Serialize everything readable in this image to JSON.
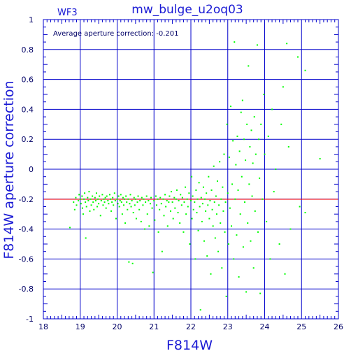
{
  "chart_data": {
    "type": "scatter",
    "title": "mw_bulge_u2oq03",
    "tag": "WF3",
    "annotation": "Average aperture correction: -0.201",
    "xlabel": "F814W",
    "ylabel": "F814W aperture correction",
    "xlim": [
      18,
      26
    ],
    "ylim": [
      -1,
      1
    ],
    "xticks": [
      "18",
      "19",
      "20",
      "21",
      "22",
      "23",
      "24",
      "25",
      "26"
    ],
    "yticks": [
      "-1",
      "-0.8",
      "-0.6",
      "-0.4",
      "-0.2",
      "0",
      "0.2",
      "0.4",
      "0.6",
      "0.8",
      "1"
    ],
    "grid": true,
    "reference_line": {
      "y": -0.201,
      "color": "#ff0000"
    },
    "colors": {
      "frame": "#0000cc",
      "text": "#1a1ad4",
      "points": "#00ff00",
      "reference": "#ff0000"
    },
    "points": [
      [
        18.72,
        -0.39
      ],
      [
        18.82,
        -0.22
      ],
      [
        18.85,
        -0.27
      ],
      [
        18.88,
        -0.19
      ],
      [
        18.9,
        -0.24
      ],
      [
        18.95,
        -0.21
      ],
      [
        18.97,
        -0.17
      ],
      [
        19.0,
        -0.2
      ],
      [
        19.02,
        -0.23
      ],
      [
        19.05,
        -0.18
      ],
      [
        19.06,
        -0.26
      ],
      [
        19.08,
        -0.3
      ],
      [
        19.1,
        -0.2
      ],
      [
        19.12,
        -0.16
      ],
      [
        19.14,
        -0.22
      ],
      [
        19.15,
        -0.46
      ],
      [
        19.17,
        -0.25
      ],
      [
        19.2,
        -0.19
      ],
      [
        19.22,
        -0.21
      ],
      [
        19.24,
        -0.15
      ],
      [
        19.26,
        -0.28
      ],
      [
        19.28,
        -0.2
      ],
      [
        19.3,
        -0.24
      ],
      [
        19.33,
        -0.18
      ],
      [
        19.35,
        -0.22
      ],
      [
        19.37,
        -0.27
      ],
      [
        19.4,
        -0.19
      ],
      [
        19.42,
        -0.21
      ],
      [
        19.44,
        -0.16
      ],
      [
        19.46,
        -0.25
      ],
      [
        19.48,
        -0.2
      ],
      [
        19.5,
        -0.23
      ],
      [
        19.52,
        -0.18
      ],
      [
        19.55,
        -0.31
      ],
      [
        19.57,
        -0.21
      ],
      [
        19.6,
        -0.17
      ],
      [
        19.62,
        -0.24
      ],
      [
        19.64,
        -0.2
      ],
      [
        19.66,
        -0.22
      ],
      [
        19.68,
        -0.19
      ],
      [
        19.7,
        -0.26
      ],
      [
        19.72,
        -0.18
      ],
      [
        19.75,
        -0.21
      ],
      [
        19.77,
        -0.23
      ],
      [
        19.8,
        -0.17
      ],
      [
        19.82,
        -0.2
      ],
      [
        19.84,
        -0.28
      ],
      [
        19.86,
        -0.22
      ],
      [
        19.88,
        -0.19
      ],
      [
        19.9,
        -0.24
      ],
      [
        19.93,
        -0.16
      ],
      [
        19.95,
        -0.21
      ],
      [
        19.97,
        -0.33
      ],
      [
        20.0,
        -0.2
      ],
      [
        20.02,
        -0.23
      ],
      [
        20.04,
        -0.18
      ],
      [
        20.06,
        -0.25
      ],
      [
        20.08,
        -0.21
      ],
      [
        20.1,
        -0.17
      ],
      [
        20.12,
        -0.22
      ],
      [
        20.14,
        -0.3
      ],
      [
        20.16,
        -0.19
      ],
      [
        20.18,
        -0.24
      ],
      [
        20.2,
        -0.2
      ],
      [
        20.22,
        -0.36
      ],
      [
        20.24,
        -0.18
      ],
      [
        20.26,
        -0.22
      ],
      [
        20.28,
        -0.27
      ],
      [
        20.3,
        -0.2
      ],
      [
        20.32,
        -0.62
      ],
      [
        20.34,
        -0.23
      ],
      [
        20.36,
        -0.17
      ],
      [
        20.38,
        -0.25
      ],
      [
        20.4,
        -0.21
      ],
      [
        20.42,
        -0.63
      ],
      [
        20.44,
        -0.29
      ],
      [
        20.46,
        -0.19
      ],
      [
        20.48,
        -0.24
      ],
      [
        20.5,
        -0.2
      ],
      [
        20.52,
        -0.33
      ],
      [
        20.55,
        -0.22
      ],
      [
        20.57,
        -0.18
      ],
      [
        20.6,
        -0.27
      ],
      [
        20.62,
        -0.21
      ],
      [
        20.65,
        -0.35
      ],
      [
        20.67,
        -0.19
      ],
      [
        20.7,
        -0.24
      ],
      [
        20.72,
        -0.2
      ],
      [
        20.75,
        -0.4
      ],
      [
        20.77,
        -0.22
      ],
      [
        20.8,
        -0.18
      ],
      [
        20.82,
        -0.3
      ],
      [
        20.85,
        -0.21
      ],
      [
        20.87,
        -0.38
      ],
      [
        20.9,
        -0.23
      ],
      [
        20.92,
        -0.19
      ],
      [
        20.95,
        -0.26
      ],
      [
        20.97,
        -0.69
      ],
      [
        21.0,
        -0.21
      ],
      [
        21.02,
        -0.34
      ],
      [
        21.05,
        -0.18
      ],
      [
        21.07,
        -0.24
      ],
      [
        21.1,
        -0.2
      ],
      [
        21.12,
        -0.42
      ],
      [
        21.15,
        -0.27
      ],
      [
        21.17,
        -0.19
      ],
      [
        21.2,
        -0.23
      ],
      [
        21.22,
        -0.55
      ],
      [
        21.25,
        -0.2
      ],
      [
        21.27,
        -0.31
      ],
      [
        21.3,
        -0.17
      ],
      [
        21.32,
        -0.25
      ],
      [
        21.35,
        -0.21
      ],
      [
        21.37,
        -0.38
      ],
      [
        21.4,
        -0.22
      ],
      [
        21.42,
        -0.18
      ],
      [
        21.45,
        -0.28
      ],
      [
        21.47,
        -0.15
      ],
      [
        21.5,
        -0.22
      ],
      [
        21.52,
        -0.33
      ],
      [
        21.55,
        -0.19
      ],
      [
        21.57,
        -0.26
      ],
      [
        21.6,
        -0.2
      ],
      [
        21.62,
        -0.14
      ],
      [
        21.65,
        -0.29
      ],
      [
        21.67,
        -0.21
      ],
      [
        21.7,
        -0.36
      ],
      [
        21.72,
        -0.17
      ],
      [
        21.75,
        -0.24
      ],
      [
        21.77,
        -0.19
      ],
      [
        21.8,
        -0.42
      ],
      [
        21.82,
        -0.22
      ],
      [
        21.85,
        -0.12
      ],
      [
        21.87,
        -0.3
      ],
      [
        21.9,
        -0.2
      ],
      [
        21.92,
        -0.25
      ],
      [
        21.95,
        -0.16
      ],
      [
        21.97,
        -0.5
      ],
      [
        22.0,
        -0.21
      ],
      [
        22.02,
        -0.05
      ],
      [
        22.03,
        -0.33
      ],
      [
        22.05,
        -0.18
      ],
      [
        22.07,
        -0.27
      ],
      [
        22.1,
        -0.22
      ],
      [
        22.12,
        -0.6
      ],
      [
        22.14,
        -0.14
      ],
      [
        22.16,
        -0.29
      ],
      [
        22.18,
        -0.2
      ],
      [
        22.2,
        -0.41
      ],
      [
        22.22,
        -0.09
      ],
      [
        22.24,
        -0.25
      ],
      [
        22.26,
        -0.94
      ],
      [
        22.28,
        -0.19
      ],
      [
        22.3,
        -0.35
      ],
      [
        22.32,
        -0.23
      ],
      [
        22.34,
        -0.12
      ],
      [
        22.36,
        -0.48
      ],
      [
        22.38,
        -0.2
      ],
      [
        22.4,
        -0.28
      ],
      [
        22.42,
        -0.16
      ],
      [
        22.44,
        -0.58
      ],
      [
        22.46,
        -0.24
      ],
      [
        22.48,
        -0.05
      ],
      [
        22.5,
        -0.33
      ],
      [
        22.52,
        -0.21
      ],
      [
        22.54,
        -0.7
      ],
      [
        22.56,
        -0.14
      ],
      [
        22.58,
        -0.27
      ],
      [
        22.6,
        -0.38
      ],
      [
        22.62,
        0.02
      ],
      [
        22.64,
        -0.22
      ],
      [
        22.66,
        -0.46
      ],
      [
        22.68,
        -0.18
      ],
      [
        22.7,
        -0.3
      ],
      [
        22.72,
        -0.08
      ],
      [
        22.74,
        -0.55
      ],
      [
        22.76,
        -0.24
      ],
      [
        22.78,
        0.05
      ],
      [
        22.8,
        -0.36
      ],
      [
        22.82,
        -0.2
      ],
      [
        22.84,
        -0.66
      ],
      [
        22.86,
        -0.12
      ],
      [
        22.88,
        -0.28
      ],
      [
        22.9,
        0.1
      ],
      [
        22.92,
        -0.42
      ],
      [
        22.94,
        -0.22
      ],
      [
        22.96,
        -0.85
      ],
      [
        22.98,
        0.3
      ],
      [
        23.0,
        -0.16
      ],
      [
        23.02,
        -0.5
      ],
      [
        23.04,
        0.08
      ],
      [
        23.06,
        -0.26
      ],
      [
        23.08,
        0.42
      ],
      [
        23.1,
        -0.38
      ],
      [
        23.12,
        -0.1
      ],
      [
        23.14,
        0.19
      ],
      [
        23.16,
        -0.6
      ],
      [
        23.18,
        0.85
      ],
      [
        23.2,
        -0.2
      ],
      [
        23.22,
        0.03
      ],
      [
        23.24,
        -0.44
      ],
      [
        23.26,
        0.22
      ],
      [
        23.28,
        -0.14
      ],
      [
        23.3,
        -0.72
      ],
      [
        23.32,
        0.12
      ],
      [
        23.34,
        -0.3
      ],
      [
        23.36,
        0.38
      ],
      [
        23.38,
        -0.05
      ],
      [
        23.4,
        0.46
      ],
      [
        23.42,
        -0.52
      ],
      [
        23.44,
        0.2
      ],
      [
        23.46,
        -0.22
      ],
      [
        23.48,
        0.06
      ],
      [
        23.5,
        -0.82
      ],
      [
        23.52,
        0.3
      ],
      [
        23.54,
        -0.36
      ],
      [
        23.56,
        0.69
      ],
      [
        23.58,
        -0.1
      ],
      [
        23.6,
        0.15
      ],
      [
        23.62,
        -0.48
      ],
      [
        23.64,
        0.26
      ],
      [
        23.66,
        -0.18
      ],
      [
        23.68,
        0.04
      ],
      [
        23.7,
        -0.66
      ],
      [
        23.72,
        0.35
      ],
      [
        23.74,
        -0.28
      ],
      [
        23.76,
        0.1
      ],
      [
        23.8,
        0.83
      ],
      [
        23.82,
        -0.42
      ],
      [
        23.84,
        0.2
      ],
      [
        23.86,
        -0.06
      ],
      [
        23.88,
        -0.83
      ],
      [
        23.9,
        0.3
      ],
      [
        23.94,
        -0.2
      ],
      [
        23.98,
        0.5
      ],
      [
        24.0,
        0.1
      ],
      [
        24.05,
        -0.35
      ],
      [
        24.1,
        0.22
      ],
      [
        24.15,
        -0.6
      ],
      [
        24.2,
        0.4
      ],
      [
        24.25,
        -0.15
      ],
      [
        24.3,
        0.0
      ],
      [
        24.4,
        -0.5
      ],
      [
        24.45,
        0.3
      ],
      [
        24.5,
        0.55
      ],
      [
        24.55,
        -0.7
      ],
      [
        24.6,
        0.84
      ],
      [
        24.65,
        0.15
      ],
      [
        24.7,
        -0.4
      ],
      [
        24.9,
        0.75
      ],
      [
        24.95,
        -0.25
      ],
      [
        25.1,
        0.66
      ],
      [
        25.1,
        -0.29
      ],
      [
        25.5,
        0.07
      ]
    ]
  }
}
